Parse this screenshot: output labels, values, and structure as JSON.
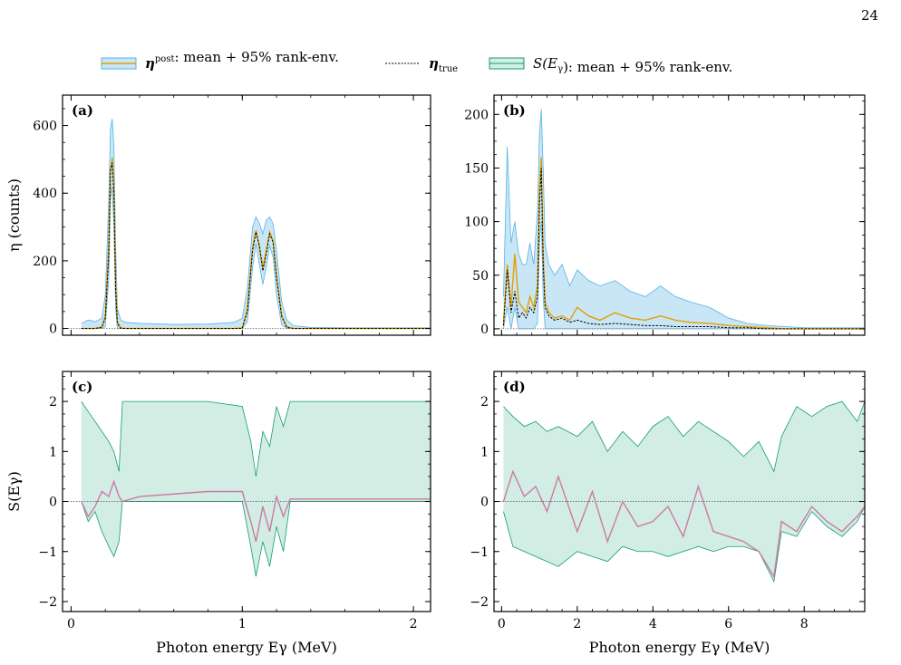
{
  "page_number": "24",
  "legend": {
    "items": [
      {
        "name": "η",
        "sup": "post",
        "sub": "",
        "text": ": mean + 95% rank-env."
      },
      {
        "name": "η",
        "sup": "",
        "sub": "true",
        "text": ""
      },
      {
        "name": "S(E",
        "sup": "",
        "sub": "γ",
        "text": "): mean + 95% rank-env."
      }
    ]
  },
  "colors": {
    "eta_band_fill": "#c8e6f5",
    "eta_band_edge": "#56b4e9",
    "eta_mean": "#e69f00",
    "eta_true": "#000000",
    "s_band_fill": "#d2ede4",
    "s_band_edge": "#109e73",
    "s_mean": "#cc79a7"
  },
  "chart_data": [
    {
      "type": "line",
      "panel_label": "(a)",
      "xlim": [
        -0.05,
        2.1
      ],
      "ylim": [
        -20,
        690
      ],
      "xticks": [
        0,
        1,
        2
      ],
      "yticks": [
        0,
        200,
        400,
        600
      ],
      "ylabel": "η (counts)",
      "xlabel": "",
      "x": [
        0.06,
        0.1,
        0.14,
        0.18,
        0.2,
        0.22,
        0.23,
        0.24,
        0.25,
        0.26,
        0.27,
        0.29,
        0.32,
        0.4,
        0.6,
        0.8,
        0.95,
        1.0,
        1.03,
        1.06,
        1.08,
        1.1,
        1.12,
        1.14,
        1.16,
        1.18,
        1.2,
        1.23,
        1.26,
        1.3,
        1.4,
        1.6,
        2.1
      ],
      "mean": [
        0,
        0,
        0,
        5,
        40,
        250,
        460,
        505,
        420,
        140,
        20,
        2,
        0,
        0,
        0,
        0,
        0,
        2,
        60,
        240,
        290,
        240,
        180,
        230,
        285,
        260,
        160,
        40,
        5,
        0,
        0,
        0,
        0
      ],
      "true": [
        0,
        0,
        0,
        3,
        30,
        220,
        470,
        490,
        400,
        120,
        15,
        0,
        0,
        0,
        0,
        0,
        0,
        0,
        50,
        230,
        285,
        245,
        170,
        220,
        280,
        255,
        150,
        35,
        3,
        0,
        0,
        0,
        0
      ],
      "upper": [
        15,
        25,
        20,
        30,
        100,
        380,
        590,
        620,
        540,
        250,
        60,
        25,
        18,
        15,
        12,
        13,
        18,
        30,
        120,
        300,
        330,
        310,
        280,
        320,
        330,
        310,
        230,
        80,
        25,
        8,
        3,
        2,
        2
      ],
      "lower": [
        0,
        0,
        0,
        0,
        5,
        150,
        380,
        420,
        300,
        60,
        0,
        0,
        0,
        0,
        0,
        0,
        0,
        0,
        20,
        180,
        250,
        190,
        130,
        180,
        245,
        210,
        100,
        10,
        0,
        0,
        0,
        0,
        0
      ]
    },
    {
      "type": "line",
      "panel_label": "(b)",
      "xlim": [
        -0.2,
        9.6
      ],
      "ylim": [
        -6,
        218
      ],
      "xticks": [
        0,
        2,
        4,
        6,
        8
      ],
      "yticks": [
        0,
        50,
        100,
        150,
        200
      ],
      "ylabel": "",
      "xlabel": "",
      "x": [
        0.05,
        0.15,
        0.25,
        0.35,
        0.45,
        0.55,
        0.65,
        0.75,
        0.85,
        0.95,
        1.0,
        1.05,
        1.1,
        1.15,
        1.25,
        1.4,
        1.6,
        1.8,
        2.0,
        2.3,
        2.6,
        3.0,
        3.4,
        3.8,
        4.2,
        4.6,
        5.0,
        5.5,
        6.0,
        6.5,
        7.0,
        7.5,
        8.0,
        9.6
      ],
      "mean": [
        5,
        60,
        20,
        70,
        25,
        20,
        15,
        30,
        20,
        40,
        130,
        160,
        70,
        25,
        15,
        10,
        12,
        8,
        20,
        12,
        8,
        15,
        10,
        8,
        12,
        8,
        6,
        5,
        3,
        2,
        1,
        0,
        0,
        0
      ],
      "true": [
        3,
        55,
        15,
        35,
        10,
        15,
        10,
        20,
        15,
        30,
        115,
        150,
        60,
        20,
        12,
        8,
        10,
        6,
        8,
        5,
        4,
        5,
        4,
        3,
        3,
        2,
        2,
        2,
        1,
        1,
        0,
        0,
        0,
        0
      ],
      "upper": [
        30,
        170,
        80,
        100,
        70,
        60,
        60,
        80,
        60,
        110,
        180,
        205,
        150,
        80,
        60,
        50,
        60,
        40,
        55,
        45,
        40,
        45,
        35,
        30,
        40,
        30,
        25,
        20,
        10,
        5,
        3,
        2,
        1,
        1
      ],
      "lower": [
        0,
        20,
        0,
        20,
        0,
        0,
        0,
        0,
        0,
        5,
        80,
        100,
        30,
        0,
        0,
        0,
        0,
        0,
        0,
        0,
        0,
        0,
        0,
        0,
        0,
        0,
        0,
        0,
        0,
        0,
        0,
        0,
        0,
        0
      ]
    },
    {
      "type": "line",
      "panel_label": "(c)",
      "xlim": [
        -0.05,
        2.1
      ],
      "ylim": [
        -2.2,
        2.6
      ],
      "xticks": [
        0,
        1,
        2
      ],
      "yticks": [
        -2,
        -1,
        0,
        1,
        2
      ],
      "ylabel": "S(Eγ)",
      "xlabel": "Photon energy Eγ (MeV)",
      "xtick_labels": [
        "0",
        "1",
        "2"
      ],
      "x": [
        0.06,
        0.1,
        0.14,
        0.18,
        0.22,
        0.25,
        0.28,
        0.3,
        0.4,
        0.6,
        0.8,
        1.0,
        1.05,
        1.08,
        1.12,
        1.16,
        1.2,
        1.24,
        1.28,
        1.4,
        2.1
      ],
      "mean": [
        0,
        -0.3,
        -0.1,
        0.2,
        0.1,
        0.4,
        0.1,
        0.0,
        0.1,
        0.15,
        0.2,
        0.2,
        -0.4,
        -0.8,
        -0.1,
        -0.6,
        0.1,
        -0.3,
        0.05,
        0.05,
        0.05
      ],
      "upper": [
        2,
        1.8,
        1.6,
        1.4,
        1.2,
        1.0,
        0.6,
        2.0,
        2.0,
        2.0,
        2.0,
        1.9,
        1.2,
        0.5,
        1.4,
        1.1,
        1.9,
        1.5,
        2.0,
        2.0,
        2.0
      ],
      "lower": [
        0,
        -0.4,
        -0.2,
        -0.6,
        -0.9,
        -1.1,
        -0.8,
        0.0,
        0.0,
        0.0,
        0.0,
        0.0,
        -0.9,
        -1.5,
        -0.8,
        -1.3,
        -0.5,
        -1.0,
        0.0,
        0.0,
        0.0
      ]
    },
    {
      "type": "line",
      "panel_label": "(d)",
      "xlim": [
        -0.2,
        9.6
      ],
      "ylim": [
        -2.2,
        2.6
      ],
      "xticks": [
        0,
        2,
        4,
        6,
        8
      ],
      "yticks": [
        -2,
        -1,
        0,
        1,
        2
      ],
      "ylabel": "",
      "xlabel": "Photon energy Eγ (MeV)",
      "xtick_labels": [
        "0",
        "2",
        "4",
        "6",
        "8"
      ],
      "x": [
        0.05,
        0.3,
        0.6,
        0.9,
        1.2,
        1.5,
        2.0,
        2.4,
        2.8,
        3.2,
        3.6,
        4.0,
        4.4,
        4.8,
        5.2,
        5.6,
        6.0,
        6.4,
        6.8,
        7.2,
        7.4,
        7.8,
        8.2,
        8.6,
        9.0,
        9.4,
        9.6
      ],
      "mean": [
        0.0,
        0.6,
        0.1,
        0.3,
        -0.2,
        0.5,
        -0.6,
        0.2,
        -0.8,
        0.0,
        -0.5,
        -0.4,
        -0.1,
        -0.7,
        0.3,
        -0.6,
        -0.7,
        -0.8,
        -1.0,
        -1.5,
        -0.4,
        -0.6,
        -0.1,
        -0.4,
        -0.6,
        -0.3,
        -0.1
      ],
      "upper": [
        1.9,
        1.7,
        1.5,
        1.6,
        1.4,
        1.5,
        1.3,
        1.6,
        1.0,
        1.4,
        1.1,
        1.5,
        1.7,
        1.3,
        1.6,
        1.4,
        1.2,
        0.9,
        1.2,
        0.6,
        1.3,
        1.9,
        1.7,
        1.9,
        2.0,
        1.6,
        2.0
      ],
      "lower": [
        -0.2,
        -0.9,
        -1.0,
        -1.1,
        -1.2,
        -1.3,
        -1.0,
        -1.1,
        -1.2,
        -0.9,
        -1.0,
        -1.0,
        -1.1,
        -1.0,
        -0.9,
        -1.0,
        -0.9,
        -0.9,
        -1.0,
        -1.6,
        -0.6,
        -0.7,
        -0.2,
        -0.5,
        -0.7,
        -0.4,
        -0.1
      ]
    }
  ]
}
